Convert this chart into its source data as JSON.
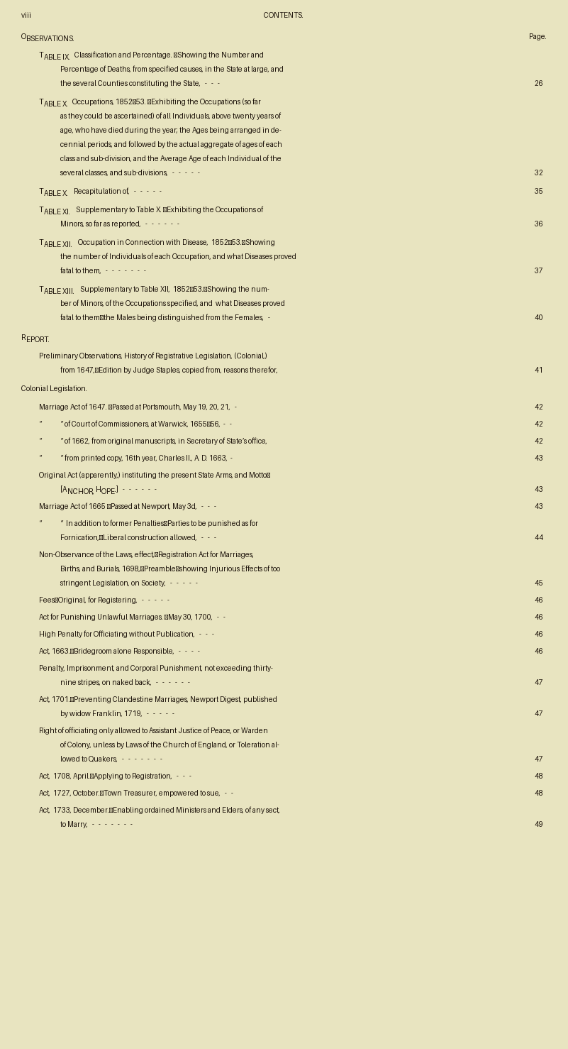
{
  "bg_color": "#e8e4c0",
  "text_color": "#1a1008",
  "page_width": 8.01,
  "page_height": 14.78,
  "dpi": 100
}
